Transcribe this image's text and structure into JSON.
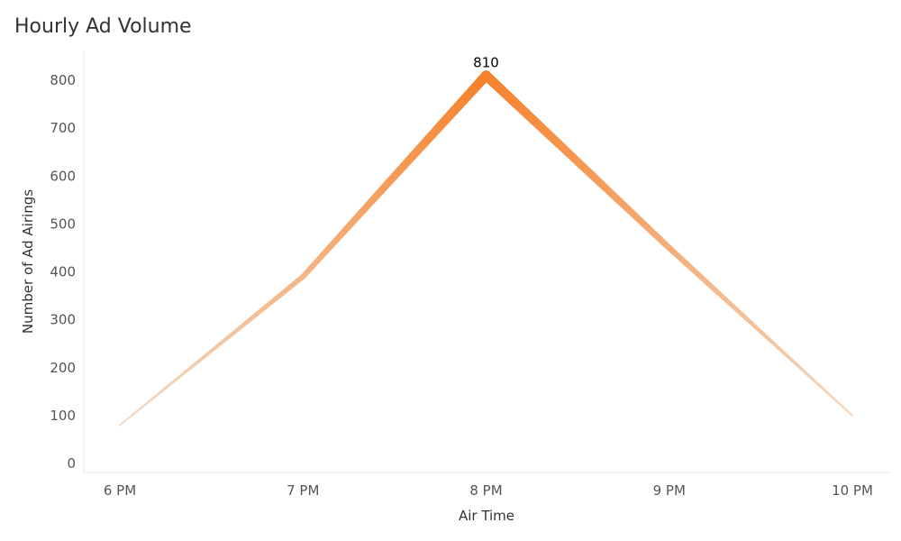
{
  "chart_data": {
    "type": "line",
    "title": "Hourly Ad Volume",
    "xlabel": "Air Time",
    "ylabel": "Number of Ad Airings",
    "categories": [
      "6 PM",
      "7 PM",
      "8 PM",
      "9 PM",
      "10 PM"
    ],
    "values": [
      80,
      390,
      810,
      450,
      100
    ],
    "ylim": [
      0,
      860
    ],
    "yticks": [
      0,
      100,
      200,
      300,
      400,
      500,
      600,
      700,
      800
    ],
    "data_labels": [
      {
        "category": "8 PM",
        "text": "810"
      }
    ],
    "grid": false,
    "line_color_light": "#f3dcc8",
    "line_color_dark": "#f5812b",
    "axis_line_color": "#e8e8e8"
  }
}
